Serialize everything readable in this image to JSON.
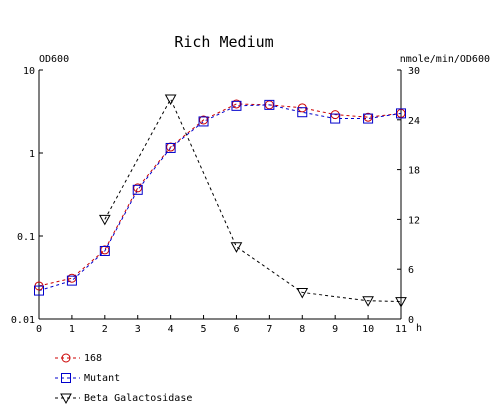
{
  "chart_data": {
    "type": "line",
    "title": "Rich Medium",
    "y_left_label": "OD600",
    "y_right_label": "nmole/min/OD600",
    "x_unit_label": "h",
    "x_ticks": [
      "0",
      "1",
      "2",
      "3",
      "4",
      "5",
      "6",
      "7",
      "8",
      "9",
      "10",
      "11"
    ],
    "x_range": [
      0,
      11
    ],
    "y_left_scale": "log",
    "y_left_range": [
      0.01,
      10
    ],
    "y_left_ticks": [
      {
        "value": 10,
        "label": "10"
      },
      {
        "value": 1,
        "label": "1"
      },
      {
        "value": 0.1,
        "label": "0.1"
      },
      {
        "value": 0.01,
        "label": "0.01"
      }
    ],
    "y_right_range": [
      0,
      30
    ],
    "y_right_ticks": [
      {
        "value": 30,
        "label": "30"
      },
      {
        "value": 24,
        "label": "24"
      },
      {
        "value": 18,
        "label": "18"
      },
      {
        "value": 12,
        "label": "12"
      },
      {
        "value": 6,
        "label": "6"
      },
      {
        "value": 0,
        "label": "0"
      }
    ],
    "grid": false,
    "legend_position": "bottom-left",
    "series": [
      {
        "name": "168",
        "axis": "left",
        "marker": "circle",
        "color": "#cc0000",
        "x": [
          0,
          1,
          2,
          3,
          4,
          5,
          6,
          7,
          8,
          9,
          10,
          11
        ],
        "y": [
          0.025,
          0.031,
          0.068,
          0.38,
          1.18,
          2.5,
          3.9,
          3.8,
          3.5,
          2.9,
          2.7,
          3.0
        ]
      },
      {
        "name": "Mutant",
        "axis": "left",
        "marker": "square",
        "color": "#0000cc",
        "x": [
          0,
          1,
          2,
          3,
          4,
          5,
          6,
          7,
          8,
          9,
          10,
          11
        ],
        "y": [
          0.022,
          0.029,
          0.066,
          0.36,
          1.15,
          2.4,
          3.7,
          3.8,
          3.1,
          2.6,
          2.6,
          3.0
        ]
      },
      {
        "name": "Beta Galactosidase",
        "axis": "right",
        "marker": "triangle-down",
        "color": "#000000",
        "x": [
          2,
          4,
          6,
          8,
          10,
          11
        ],
        "y": [
          12,
          26.5,
          8.7,
          3.2,
          2.2,
          2.1
        ]
      }
    ]
  }
}
